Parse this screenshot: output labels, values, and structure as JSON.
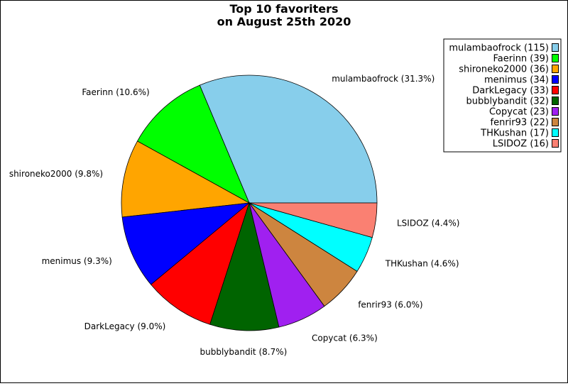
{
  "chart_data": {
    "type": "pie",
    "title_lines": [
      "Top 10 favoriters",
      "on August 25th 2020"
    ],
    "slices": [
      {
        "name": "mulambaofrock",
        "value": 115,
        "percent": "31.3%",
        "color": "#87CEEB"
      },
      {
        "name": "Faerinn",
        "value": 39,
        "percent": "10.6%",
        "color": "#00FF00"
      },
      {
        "name": "shironeko2000",
        "value": 36,
        "percent": "9.8%",
        "color": "#FFA500"
      },
      {
        "name": "menimus",
        "value": 34,
        "percent": "9.3%",
        "color": "#0000FF"
      },
      {
        "name": "DarkLegacy",
        "value": 33,
        "percent": "9.0%",
        "color": "#FF0000"
      },
      {
        "name": "bubblybandit",
        "value": 32,
        "percent": "8.7%",
        "color": "#006400"
      },
      {
        "name": "Copycat",
        "value": 23,
        "percent": "6.3%",
        "color": "#A020F0"
      },
      {
        "name": "fenrir93",
        "value": 22,
        "percent": "6.0%",
        "color": "#CD853F"
      },
      {
        "name": "THKushan",
        "value": 17,
        "percent": "4.6%",
        "color": "#00FFFF"
      },
      {
        "name": "LSIDOZ",
        "value": 16,
        "percent": "4.4%",
        "color": "#FA8072"
      }
    ],
    "legend_position": "top-right"
  }
}
